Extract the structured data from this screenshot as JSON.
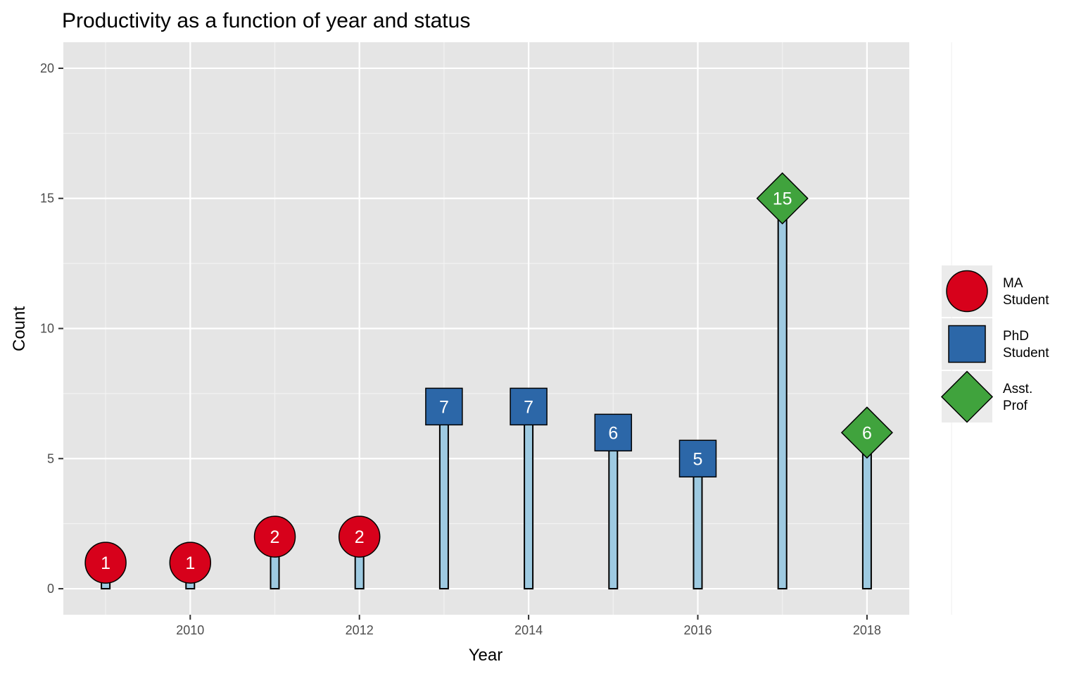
{
  "chart_data": {
    "type": "bar",
    "title": "Productivity as a function of year and status",
    "xlabel": "Year",
    "ylabel": "Count",
    "xlim": [
      2008.5,
      2018.5
    ],
    "ylim": [
      -1,
      21
    ],
    "x_ticks": [
      2010,
      2012,
      2014,
      2016,
      2018
    ],
    "y_ticks": [
      0,
      5,
      10,
      15,
      20
    ],
    "grid": true,
    "legend_position": "right",
    "bar_color": "#9ecae1",
    "categories": [
      2009,
      2010,
      2011,
      2012,
      2013,
      2014,
      2015,
      2016,
      2017,
      2018
    ],
    "values": [
      1,
      1,
      2,
      2,
      7,
      7,
      6,
      5,
      15,
      6
    ],
    "status": [
      "MA",
      "MA",
      "MA",
      "MA",
      "PhD",
      "PhD",
      "PhD",
      "PhD",
      "Asst",
      "Asst"
    ],
    "series": [
      {
        "key": "MA",
        "name_lines": [
          "MA",
          "Student"
        ],
        "shape": "circle",
        "color": "#d7011b"
      },
      {
        "key": "PhD",
        "name_lines": [
          "PhD",
          "Student"
        ],
        "shape": "square",
        "color": "#2c67a8"
      },
      {
        "key": "Asst",
        "name_lines": [
          "Asst.",
          "Prof"
        ],
        "shape": "diamond",
        "color": "#40a33d"
      }
    ]
  },
  "colors": {
    "panel_background": "#e5e5e5",
    "grid_major": "#ffffff",
    "grid_minor": "#f2f2f2",
    "legend_key_background": "#ebebeb"
  }
}
